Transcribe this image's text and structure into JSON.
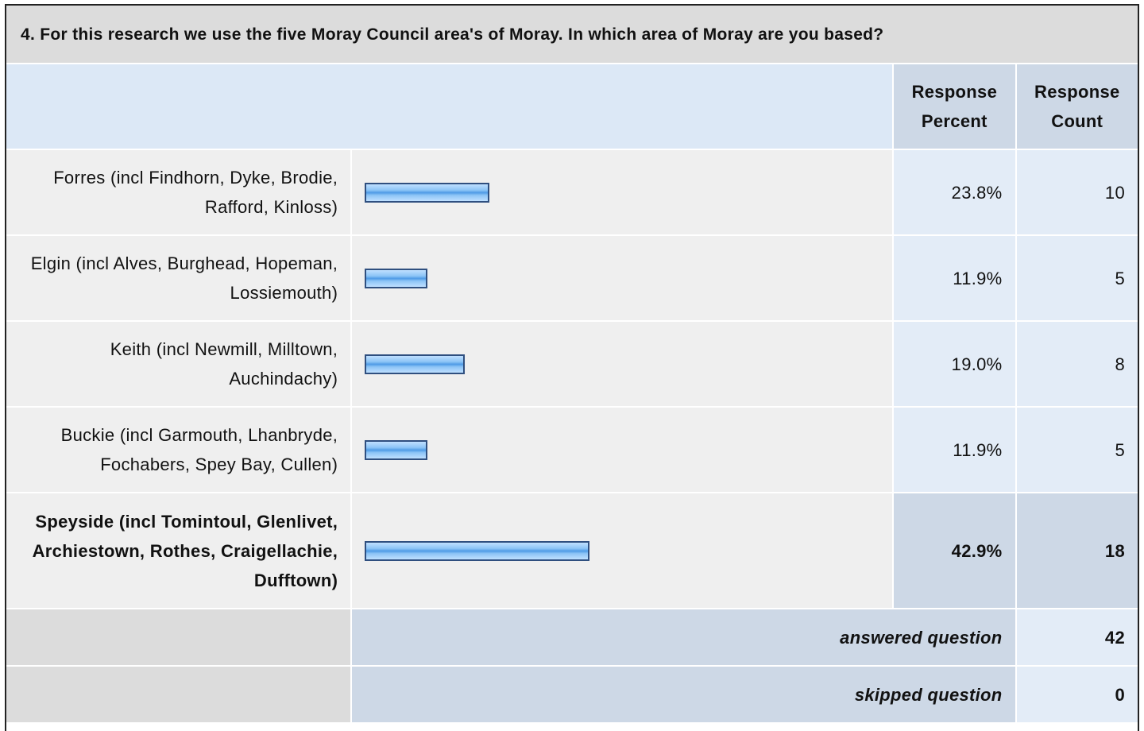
{
  "question": "4. For this research we use the five Moray Council area's of Moray. In which area of Moray are you based?",
  "header": {
    "percent": "Response Percent",
    "count": "Response Count"
  },
  "rows": [
    {
      "label": "Forres (incl Findhorn, Dyke, Brodie, Rafford, Kinloss)",
      "percent": 23.8,
      "percent_label": "23.8%",
      "count": 10
    },
    {
      "label": "Elgin (incl Alves, Burghead, Hopeman, Lossiemouth)",
      "percent": 11.9,
      "percent_label": "11.9%",
      "count": 5
    },
    {
      "label": "Keith (incl Newmill, Milltown, Auchindachy)",
      "percent": 19.0,
      "percent_label": "19.0%",
      "count": 8
    },
    {
      "label": "Buckie (incl Garmouth, Lhanbryde, Fochabers, Spey Bay, Cullen)",
      "percent": 11.9,
      "percent_label": "11.9%",
      "count": 5
    },
    {
      "label": "Speyside (incl Tomintoul, Glenlivet, Archiestown, Rothes, Craigellachie, Dufftown)",
      "percent": 42.9,
      "percent_label": "42.9%",
      "count": 18,
      "bold": true
    }
  ],
  "answered": {
    "label": "answered question",
    "count": 42
  },
  "skipped": {
    "label": "skipped question",
    "count": 0
  }
}
